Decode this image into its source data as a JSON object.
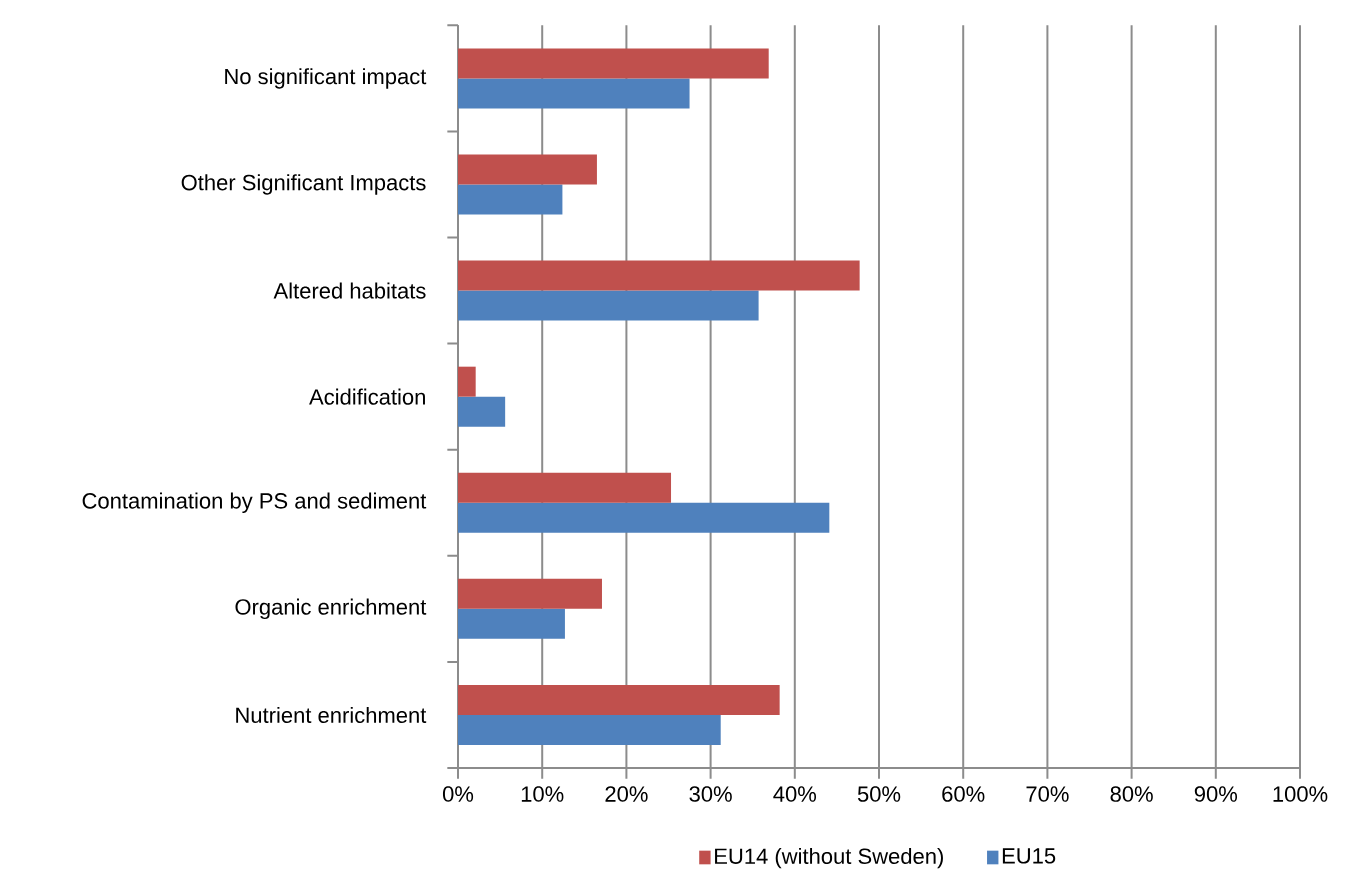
{
  "chart_data": {
    "type": "bar",
    "orientation": "horizontal",
    "categories": [
      "No significant impact",
      "Other Significant Impacts",
      "Altered habitats",
      "Acidification",
      "Contamination by PS and sediment",
      "Organic enrichment",
      "Nutrient enrichment"
    ],
    "series": [
      {
        "name": "EU14 (without Sweden)",
        "color": "#c0504d",
        "values": [
          36.9,
          16.5,
          47.7,
          2.1,
          25.3,
          17.1,
          38.2
        ]
      },
      {
        "name": "EU15",
        "color": "#4f81bd",
        "values": [
          27.5,
          12.4,
          35.7,
          5.6,
          44.1,
          12.7,
          31.2
        ]
      }
    ],
    "xlim": [
      0,
      100
    ],
    "xticks": [
      {
        "value": 0,
        "label": "0%"
      },
      {
        "value": 10,
        "label": "10%"
      },
      {
        "value": 20,
        "label": "20%"
      },
      {
        "value": 30,
        "label": "30%"
      },
      {
        "value": 40,
        "label": "40%"
      },
      {
        "value": 50,
        "label": "50%"
      },
      {
        "value": 60,
        "label": "60%"
      },
      {
        "value": 70,
        "label": "70%"
      },
      {
        "value": 80,
        "label": "80%"
      },
      {
        "value": 90,
        "label": "90%"
      },
      {
        "value": 100,
        "label": "100%"
      }
    ],
    "grid": "x",
    "legend": "bottom"
  }
}
